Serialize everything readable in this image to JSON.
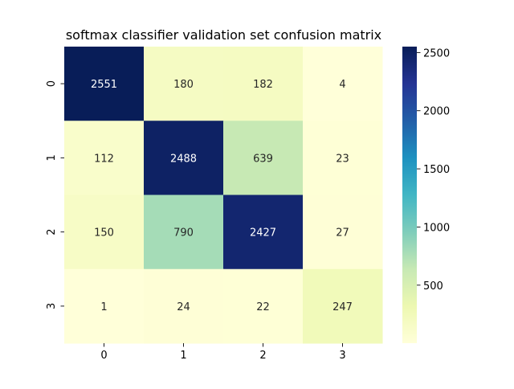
{
  "chart_data": {
    "type": "heatmap",
    "title": "softmax classifier validation set confusion matrix",
    "xlabel": "",
    "ylabel": "",
    "x_categories": [
      "0",
      "1",
      "2",
      "3"
    ],
    "y_categories": [
      "0",
      "1",
      "2",
      "3"
    ],
    "values": [
      [
        2551,
        180,
        182,
        4
      ],
      [
        112,
        2488,
        639,
        23
      ],
      [
        150,
        790,
        2427,
        27
      ],
      [
        1,
        24,
        22,
        247
      ]
    ],
    "colormap": "YlGnBu",
    "colorbar": {
      "vmin": 1,
      "vmax": 2551,
      "ticks": [
        500,
        1000,
        1500,
        2000,
        2500
      ],
      "tick_labels": [
        "500",
        "1000",
        "1500",
        "2000",
        "2500"
      ]
    },
    "annotations": true,
    "annotation_dark_color": "#262626",
    "annotation_light_color": "#ffffff"
  }
}
